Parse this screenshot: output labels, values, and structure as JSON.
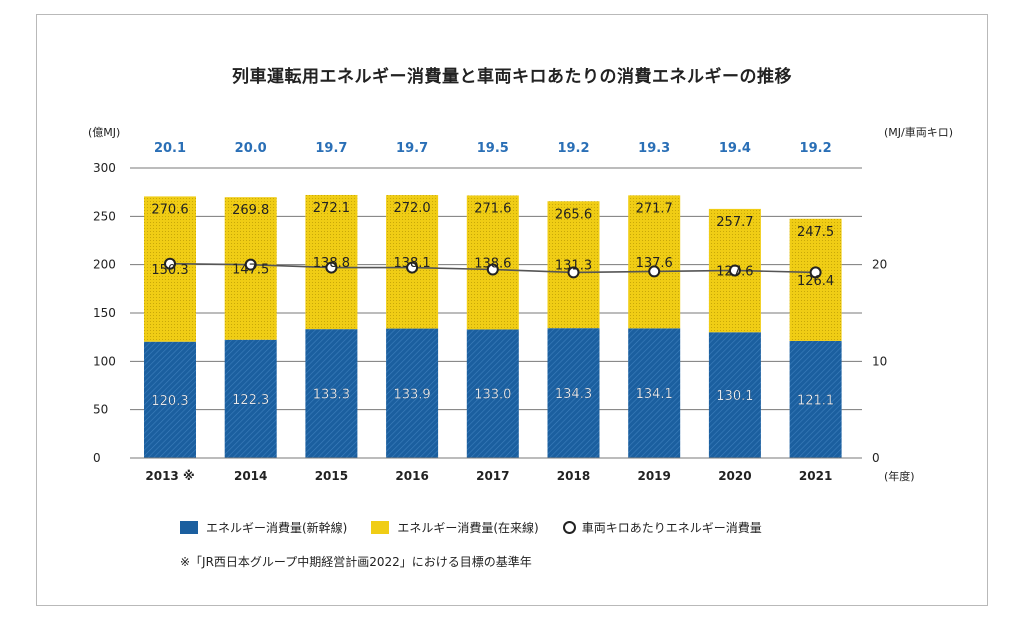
{
  "chart_data": {
    "type": "bar",
    "title": "列車運転用エネルギー消費量と車両キロあたりの消費エネルギーの推移",
    "ylabel_left": "(億MJ)",
    "ylabel_right": "(MJ/車両キロ)",
    "xlabel": "(年度)",
    "ylim_left": [
      0,
      300
    ],
    "yticks_left": [
      "0",
      "50",
      "100",
      "150",
      "200",
      "250",
      "300"
    ],
    "ylim_right": [
      0,
      30
    ],
    "yticks_right": [
      "0",
      "10",
      "20"
    ],
    "categories": [
      "2013 ※",
      "2014",
      "2015",
      "2016",
      "2017",
      "2018",
      "2019",
      "2020",
      "2021"
    ],
    "series": [
      {
        "name": "エネルギー消費量(新幹線)",
        "color": "#1b5f9f",
        "values": [
          120.3,
          122.3,
          133.3,
          133.9,
          133.0,
          134.3,
          134.1,
          130.1,
          121.1
        ],
        "labels": [
          "120.3",
          "122.3",
          "133.3",
          "133.9",
          "133.0",
          "134.3",
          "134.1",
          "130.1",
          "121.1"
        ]
      },
      {
        "name": "エネルギー消費量(在来線)",
        "color": "#f0cd15",
        "values": [
          150.3,
          147.5,
          138.8,
          138.1,
          138.6,
          131.3,
          137.6,
          127.6,
          126.4
        ],
        "labels": [
          "150.3",
          "147.5",
          "138.8",
          "138.1",
          "138.6",
          "131.3",
          "137.6",
          "127.6",
          "126.4"
        ]
      }
    ],
    "totals": [
      270.6,
      269.8,
      272.1,
      272.0,
      271.6,
      265.6,
      271.7,
      257.7,
      247.5
    ],
    "total_labels": [
      "270.6",
      "269.8",
      "272.1",
      "272.0",
      "271.6",
      "265.6",
      "271.7",
      "257.7",
      "247.5"
    ],
    "line": {
      "name": "車両キロあたりエネルギー消費量",
      "axis": "right",
      "values": [
        20.1,
        20.0,
        19.7,
        19.7,
        19.5,
        19.2,
        19.3,
        19.4,
        19.2
      ],
      "labels": [
        "20.1",
        "20.0",
        "19.7",
        "19.7",
        "19.5",
        "19.2",
        "19.3",
        "19.4",
        "19.2"
      ],
      "label_color": "#2a6fb6"
    },
    "grid": true,
    "legend_position": "bottom"
  },
  "note": "※「JR西日本グループ中期経営計画2022」における目標の基準年"
}
